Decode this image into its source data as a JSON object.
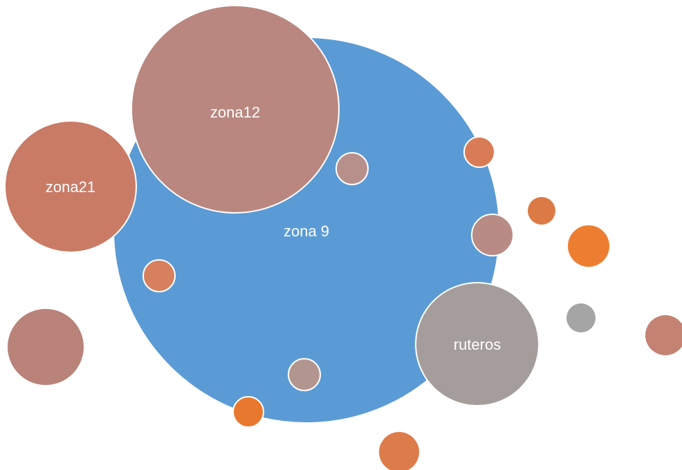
{
  "nodes": [
    {
      "label": "zona 9"
    },
    {
      "label": "zona12"
    },
    {
      "label": "zona21"
    },
    {
      "label": "ruteros"
    }
  ]
}
